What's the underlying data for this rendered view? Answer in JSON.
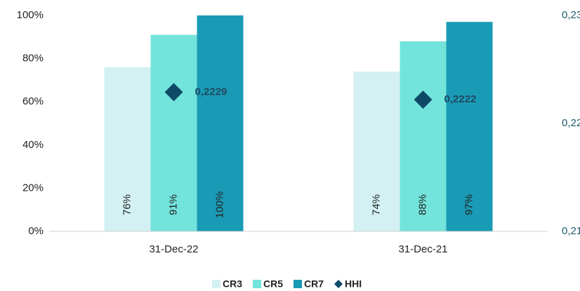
{
  "chart_data": {
    "type": "bar",
    "categories": [
      "31-Dec-22",
      "31-Dec-21"
    ],
    "series": [
      {
        "name": "CR3",
        "color": "#d3f0f2",
        "values": [
          76,
          74
        ],
        "value_labels": [
          "76%",
          "74%"
        ]
      },
      {
        "name": "CR5",
        "color": "#73e4dc",
        "values": [
          91,
          88
        ],
        "value_labels": [
          "91%",
          "88%"
        ]
      },
      {
        "name": "CR7",
        "color": "#1a9bb5",
        "values": [
          100,
          97
        ],
        "value_labels": [
          "100%",
          "97%"
        ]
      },
      {
        "name": "HHI",
        "color": "#0e4a66",
        "axis": "y2",
        "marker": "diamond",
        "values": [
          0.2229,
          0.2222
        ],
        "value_labels": [
          "0,2229",
          "0,2222"
        ]
      }
    ],
    "ylim": [
      0,
      100
    ],
    "yticks": [
      {
        "value": 0,
        "label": "0%"
      },
      {
        "value": 20,
        "label": "20%"
      },
      {
        "value": 40,
        "label": "40%"
      },
      {
        "value": 60,
        "label": "60%"
      },
      {
        "value": 80,
        "label": "80%"
      },
      {
        "value": 100,
        "label": "100%"
      }
    ],
    "y2lim": [
      0.21,
      0.23
    ],
    "y2ticks": [
      {
        "value": 0.21,
        "label": "0,21"
      },
      {
        "value": 0.22,
        "label": "0,22"
      },
      {
        "value": 0.23,
        "label": "0,23"
      }
    ],
    "grid": false,
    "legend": "bottom"
  }
}
